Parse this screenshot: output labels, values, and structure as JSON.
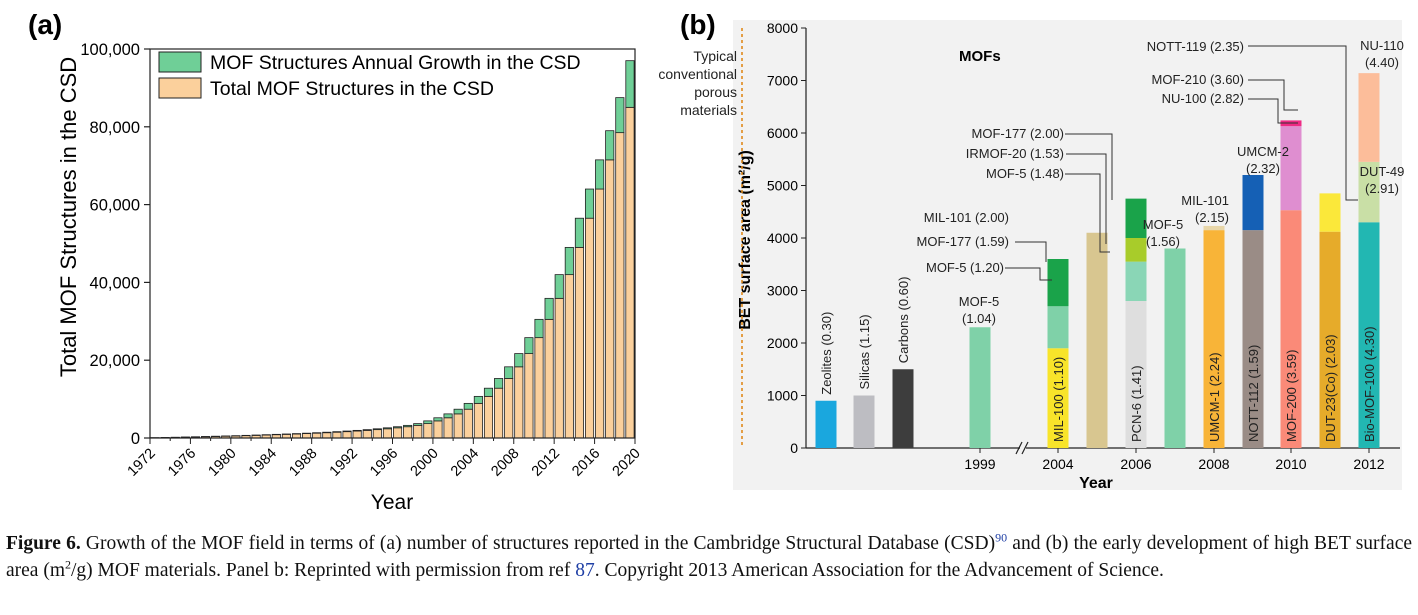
{
  "chart_data": [
    {
      "type": "bar",
      "panel_label": "(a)",
      "stacked": true,
      "xlabel": "Year",
      "ylabel": "Total MOF Structures in the CSD",
      "ylim": [
        0,
        100000
      ],
      "yticks": [
        "0",
        "20,000",
        "40,000",
        "60,000",
        "80,000",
        "100,000"
      ],
      "xticks": [
        "1972",
        "1976",
        "1980",
        "1984",
        "1988",
        "1992",
        "1996",
        "2000",
        "2004",
        "2008",
        "2012",
        "2016",
        "2020"
      ],
      "xlim": [
        1972,
        2020
      ],
      "legend_position": "top-left",
      "years": [
        1972,
        1973,
        1974,
        1975,
        1976,
        1977,
        1978,
        1979,
        1980,
        1981,
        1982,
        1983,
        1984,
        1985,
        1986,
        1987,
        1988,
        1989,
        1990,
        1991,
        1992,
        1993,
        1994,
        1995,
        1996,
        1997,
        1998,
        1999,
        2000,
        2001,
        2002,
        2003,
        2004,
        2005,
        2006,
        2007,
        2008,
        2009,
        2010,
        2011,
        2012,
        2013,
        2014,
        2015,
        2016,
        2017,
        2018,
        2019
      ],
      "series": [
        {
          "name": "Total MOF Structures in the CSD",
          "color": "#fbd09c",
          "values": [
            50,
            90,
            140,
            200,
            260,
            320,
            390,
            460,
            530,
            600,
            680,
            760,
            850,
            940,
            1030,
            1130,
            1240,
            1360,
            1490,
            1630,
            1790,
            1960,
            2150,
            2370,
            2620,
            2900,
            3250,
            3700,
            4400,
            5200,
            6200,
            7400,
            8900,
            10700,
            12800,
            15300,
            18300,
            21700,
            25800,
            30500,
            35900,
            42000,
            49000,
            56500,
            64000,
            71500,
            78500,
            85000
          ]
        },
        {
          "name": "MOF Structures Annual Growth in the CSD",
          "color": "#6fcf97",
          "values": [
            40,
            50,
            60,
            60,
            60,
            70,
            70,
            70,
            70,
            80,
            80,
            90,
            90,
            90,
            100,
            110,
            120,
            130,
            140,
            160,
            170,
            190,
            220,
            250,
            280,
            350,
            450,
            700,
            800,
            1000,
            1200,
            1500,
            1800,
            2100,
            2500,
            3000,
            3400,
            4100,
            4700,
            5400,
            6100,
            7000,
            7500,
            7500,
            7500,
            7500,
            9000,
            12000
          ]
        }
      ]
    },
    {
      "type": "bar",
      "panel_label": "(b)",
      "stacked": true,
      "xlabel": "Year",
      "ylabel": "BET surface area (m²/g)",
      "ylim": [
        0,
        8000
      ],
      "yticks": [
        "0",
        "1000",
        "2000",
        "3000",
        "4000",
        "5000",
        "6000",
        "7000",
        "8000"
      ],
      "xticks": [
        "1999",
        "2004",
        "2006",
        "2008",
        "2010",
        "2012"
      ],
      "typical_label": [
        "Typical",
        "conventional",
        "porous",
        "materials"
      ],
      "mofs_label": "MOFs",
      "bars": [
        {
          "slot": 0,
          "color_top": "#1aa7de",
          "segments": [
            {
              "value": 900,
              "color": "#1aa7de"
            }
          ],
          "label": "Zeolites (0.30)",
          "label_mode": "above-vertical"
        },
        {
          "slot": 1,
          "segments": [
            {
              "value": 1000,
              "color": "#bdbdc2"
            }
          ],
          "label": "Silicas (1.15)",
          "label_mode": "above-vertical"
        },
        {
          "slot": 2,
          "segments": [
            {
              "value": 1500,
              "color": "#3d3d3d"
            }
          ],
          "label": "Carbons (0.60)",
          "label_mode": "above-vertical"
        },
        {
          "slot": 3,
          "segments": [
            {
              "value": 2300,
              "color": "#7fd1a8"
            }
          ],
          "label": "MOF-5 (1.04)",
          "label_mode": "above"
        },
        {
          "slot": 4,
          "segments": [
            {
              "value": 1900,
              "color": "#f8e42a"
            },
            {
              "value": 800,
              "color": "#7fd1a8"
            },
            {
              "value": 900,
              "color": "#1aa34a"
            }
          ],
          "label": "MIL-100 (1.10)",
          "label_mode": "inside-vertical"
        },
        {
          "slot": 5,
          "segments": [
            {
              "value": 4100,
              "color": "#d8c690"
            }
          ],
          "label": "MIL-101 (2.00)",
          "label_mode": "above"
        },
        {
          "slot": 6,
          "segments": [
            {
              "value": 2800,
              "color": "#dedede"
            },
            {
              "value": 750,
              "color": "#8ad6b6"
            },
            {
              "value": 450,
              "color": "#a8cc2a"
            },
            {
              "value": 750,
              "color": "#1aa34a"
            }
          ],
          "label": "PCN-6 (1.41)",
          "label_mode": "inside-vertical"
        },
        {
          "slot": 7,
          "segments": [
            {
              "value": 3800,
              "color": "#7fd1a8"
            }
          ],
          "label": "MOF-5 (1.56)",
          "label_mode": "above"
        },
        {
          "slot": 8,
          "segments": [
            {
              "value": 4150,
              "color": "#f8b438"
            },
            {
              "value": 80,
              "color": "#e8d6a8"
            }
          ],
          "label": "UMCM-1 (2.24)",
          "label_mode": "inside-vertical"
        },
        {
          "slot": 9,
          "segments": [
            {
              "value": 4150,
              "color": "#9a8c86"
            },
            {
              "value": 1050,
              "color": "#1560b5"
            }
          ],
          "label": "NOTT-112 (1.59)",
          "label_mode": "inside-vertical"
        },
        {
          "slot": 10,
          "segments": [
            {
              "value": 4530,
              "color": "#fa8a78"
            },
            {
              "value": 1600,
              "color": "#df8ed0"
            },
            {
              "value": 110,
              "color": "#ef2a84"
            }
          ],
          "label": "MOF-200 (3.59)",
          "label_mode": "inside-vertical"
        },
        {
          "slot": 11,
          "segments": [
            {
              "value": 4120,
              "color": "#e6ab2a"
            },
            {
              "value": 730,
              "color": "#fbe83a"
            }
          ],
          "label": "DUT-23(Co) (2.03)",
          "label_mode": "inside-vertical"
        },
        {
          "slot": 12,
          "segments": [
            {
              "value": 4300,
              "color": "#22b7b2"
            },
            {
              "value": 1150,
              "color": "#c9dfa6"
            },
            {
              "value": 1690,
              "color": "#fcbd9a"
            }
          ],
          "label": "Bio-MOF-100 (4.30)",
          "label_mode": "inside-vertical"
        }
      ],
      "annotations": [
        {
          "id": "mof5_120",
          "text": "MOF-5 (1.20)"
        },
        {
          "id": "mof177_159",
          "text": "MOF-177 (1.59)"
        },
        {
          "id": "mil101_200",
          "text": "MIL-101 (2.00)"
        },
        {
          "id": "mof177_200",
          "text": "MOF-177 (2.00)"
        },
        {
          "id": "irmof20",
          "text": "IRMOF-20 (1.53)"
        },
        {
          "id": "mof5_148",
          "text": "MOF-5 (1.48)"
        },
        {
          "id": "mof5_156a",
          "text": "MOF-5"
        },
        {
          "id": "mof5_156b",
          "text": "(1.56)"
        },
        {
          "id": "mil101_215a",
          "text": "MIL-101"
        },
        {
          "id": "mil101_215b",
          "text": "(2.15)"
        },
        {
          "id": "umcm2a",
          "text": "UMCM-2"
        },
        {
          "id": "umcm2b",
          "text": "(2.32)"
        },
        {
          "id": "nott119",
          "text": "NOTT-119 (2.35)"
        },
        {
          "id": "mof210",
          "text": "MOF-210 (3.60)"
        },
        {
          "id": "nu100",
          "text": "NU-100 (2.82)"
        },
        {
          "id": "dut49a",
          "text": "DUT-49"
        },
        {
          "id": "dut49b",
          "text": "(2.91)"
        },
        {
          "id": "nu110a",
          "text": "NU-110"
        },
        {
          "id": "nu110b",
          "text": "(4.40)"
        },
        {
          "id": "mof5_104a",
          "text": "MOF-5"
        },
        {
          "id": "mof5_104b",
          "text": "(1.04)"
        }
      ]
    }
  ],
  "caption": {
    "figure_label": "Figure 6.",
    "text_1": " Growth of the MOF field in terms of (a) number of structures reported in the Cambridge Structural Database (CSD)",
    "ref_1": "90",
    "text_2": " and (b) the early development of high BET surface area (m",
    "sup_2": "2",
    "text_3": "/g) MOF materials. Panel b: Reprinted with permission from ref ",
    "ref_2": "87",
    "text_4": ". Copyright 2013 American Association for the Advancement of Science."
  }
}
